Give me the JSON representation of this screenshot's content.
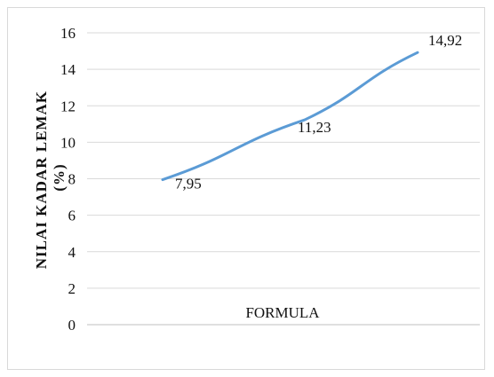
{
  "colors": {
    "series": "#5b9bd5",
    "grid": "#d9d9d9",
    "background": "#ffffff"
  },
  "chart_data": {
    "type": "line",
    "title": "",
    "xlabel": "FORMULA",
    "ylabel": "NILAI KADAR LEMAK (%)",
    "ylabel_lines": [
      "NILAI KADAR LEMAK",
      "(%)"
    ],
    "ylim": [
      0,
      16
    ],
    "yticks": [
      0,
      2,
      4,
      6,
      8,
      10,
      12,
      14,
      16
    ],
    "grid": true,
    "legend": "none",
    "x": [
      1,
      2,
      3
    ],
    "series": [
      {
        "name": "",
        "values": [
          7.95,
          11.23,
          14.92
        ],
        "data_labels": [
          "7,95",
          "11,23",
          "14,92"
        ]
      }
    ]
  }
}
